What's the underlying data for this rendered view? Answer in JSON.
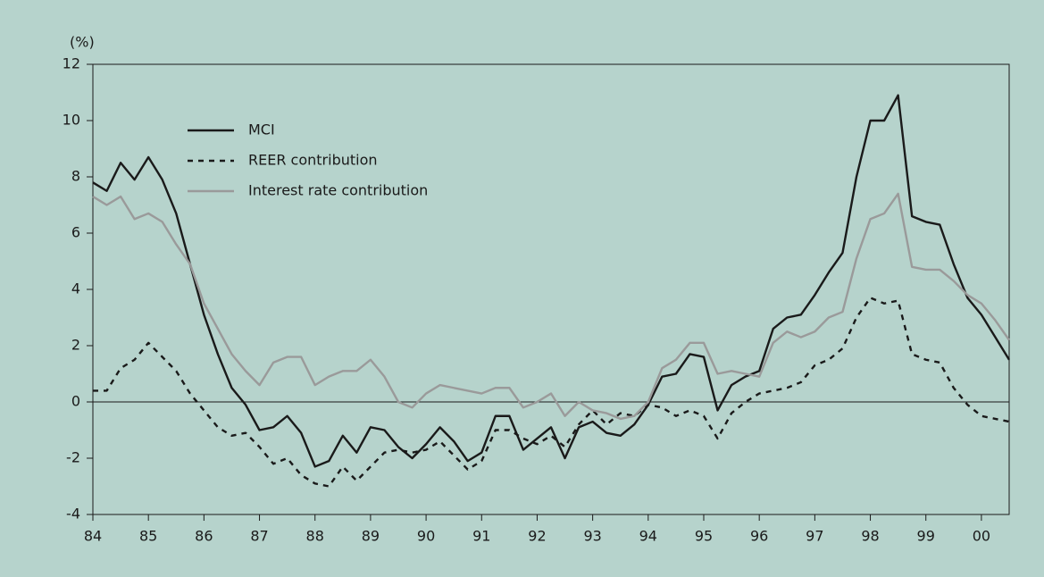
{
  "chart_data": {
    "type": "line",
    "y_unit_label": "(%)",
    "x": [
      1984,
      1984.25,
      1984.5,
      1984.75,
      1985,
      1985.25,
      1985.5,
      1985.75,
      1986,
      1986.25,
      1986.5,
      1986.75,
      1987,
      1987.25,
      1987.5,
      1987.75,
      1988,
      1988.25,
      1988.5,
      1988.75,
      1989,
      1989.25,
      1989.5,
      1989.75,
      1990,
      1990.25,
      1990.5,
      1990.75,
      1991,
      1991.25,
      1991.5,
      1991.75,
      1992,
      1992.25,
      1992.5,
      1992.75,
      1993,
      1993.25,
      1993.5,
      1993.75,
      1994,
      1994.25,
      1994.5,
      1994.75,
      1995,
      1995.25,
      1995.5,
      1995.75,
      1996,
      1996.25,
      1996.5,
      1996.75,
      1997,
      1997.25,
      1997.5,
      1997.75,
      1998,
      1998.25,
      1998.5,
      1998.75,
      1999,
      1999.25,
      1999.5,
      1999.75,
      2000,
      2000.25,
      2000.5
    ],
    "series": [
      {
        "name": "MCI",
        "color": "#1a1a1a",
        "dash": "solid",
        "values": [
          7.8,
          7.5,
          8.5,
          7.9,
          8.7,
          7.9,
          6.7,
          4.9,
          3.1,
          1.7,
          0.5,
          -0.1,
          -1.0,
          -0.9,
          -0.5,
          -1.1,
          -2.3,
          -2.1,
          -1.2,
          -1.8,
          -0.9,
          -1.0,
          -1.6,
          -2.0,
          -1.5,
          -0.9,
          -1.4,
          -2.1,
          -1.8,
          -0.5,
          -0.5,
          -1.7,
          -1.3,
          -0.9,
          -2.0,
          -0.9,
          -0.7,
          -1.1,
          -1.2,
          -0.8,
          -0.1,
          0.9,
          1.0,
          1.7,
          1.6,
          -0.3,
          0.6,
          0.9,
          1.1,
          2.6,
          3.0,
          3.1,
          3.8,
          4.6,
          5.3,
          8.0,
          10.0,
          10.0,
          10.9,
          6.6,
          6.4,
          6.3,
          4.9,
          3.7,
          3.1,
          2.3,
          1.5
        ]
      },
      {
        "name": "REER contribution",
        "color": "#1a1a1a",
        "dash": "dashed",
        "values": [
          0.4,
          0.4,
          1.2,
          1.5,
          2.1,
          1.6,
          1.1,
          0.3,
          -0.3,
          -0.9,
          -1.2,
          -1.1,
          -1.6,
          -2.2,
          -2.0,
          -2.6,
          -2.9,
          -3.0,
          -2.3,
          -2.8,
          -2.3,
          -1.8,
          -1.7,
          -1.8,
          -1.7,
          -1.4,
          -1.9,
          -2.4,
          -2.1,
          -1.0,
          -1.0,
          -1.3,
          -1.5,
          -1.2,
          -1.6,
          -0.8,
          -0.3,
          -0.8,
          -0.4,
          -0.5,
          -0.1,
          -0.2,
          -0.5,
          -0.3,
          -0.5,
          -1.3,
          -0.4,
          0.0,
          0.3,
          0.4,
          0.5,
          0.7,
          1.3,
          1.5,
          1.9,
          3.0,
          3.7,
          3.5,
          3.6,
          1.7,
          1.5,
          1.4,
          0.5,
          -0.1,
          -0.5,
          -0.6,
          -0.7
        ]
      },
      {
        "name": "Interest rate contribution",
        "color": "#9a9a9a",
        "dash": "solid",
        "values": [
          7.3,
          7.0,
          7.3,
          6.5,
          6.7,
          6.4,
          5.6,
          4.9,
          3.5,
          2.6,
          1.7,
          1.1,
          0.6,
          1.4,
          1.6,
          1.6,
          0.6,
          0.9,
          1.1,
          1.1,
          1.5,
          0.9,
          0.0,
          -0.2,
          0.3,
          0.6,
          0.5,
          0.4,
          0.3,
          0.5,
          0.5,
          -0.2,
          0.0,
          0.3,
          -0.5,
          0.0,
          -0.3,
          -0.4,
          -0.6,
          -0.5,
          0.0,
          1.2,
          1.5,
          2.1,
          2.1,
          1.0,
          1.1,
          1.0,
          0.9,
          2.1,
          2.5,
          2.3,
          2.5,
          3.0,
          3.2,
          5.1,
          6.5,
          6.7,
          7.4,
          4.8,
          4.7,
          4.7,
          4.3,
          3.8,
          3.5,
          2.9,
          2.2
        ]
      }
    ],
    "xlim": [
      1984,
      2000.5
    ],
    "xticks": [
      {
        "value": 1984,
        "label": "84"
      },
      {
        "value": 1985,
        "label": "85"
      },
      {
        "value": 1986,
        "label": "86"
      },
      {
        "value": 1987,
        "label": "87"
      },
      {
        "value": 1988,
        "label": "88"
      },
      {
        "value": 1989,
        "label": "89"
      },
      {
        "value": 1990,
        "label": "90"
      },
      {
        "value": 1991,
        "label": "91"
      },
      {
        "value": 1992,
        "label": "92"
      },
      {
        "value": 1993,
        "label": "93"
      },
      {
        "value": 1994,
        "label": "94"
      },
      {
        "value": 1995,
        "label": "95"
      },
      {
        "value": 1996,
        "label": "96"
      },
      {
        "value": 1997,
        "label": "97"
      },
      {
        "value": 1998,
        "label": "98"
      },
      {
        "value": 1999,
        "label": "99"
      },
      {
        "value": 2000,
        "label": "00"
      }
    ],
    "ylim": [
      -4,
      12
    ],
    "yticks": [
      -4,
      -2,
      0,
      2,
      4,
      6,
      8,
      10,
      12
    ],
    "legend": "upper left",
    "grid": false
  }
}
